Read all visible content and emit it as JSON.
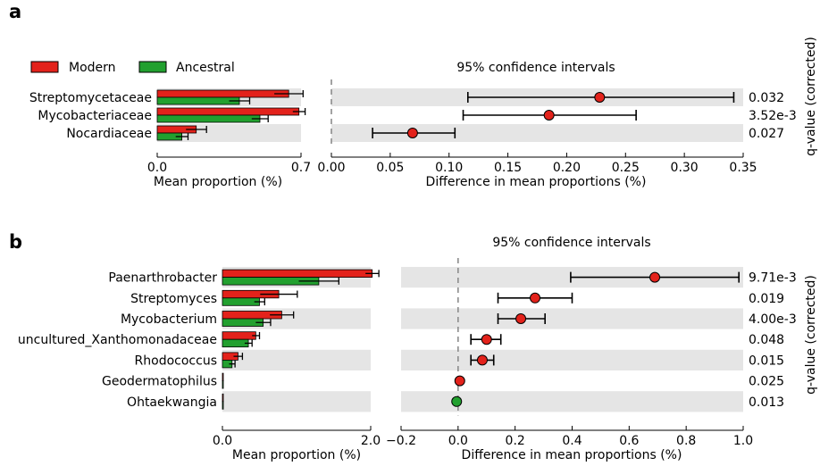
{
  "colors": {
    "modern": "#e3221b",
    "ancestral": "#22a02f",
    "band": "#e5e5e5",
    "dash": "#8c8c8c"
  },
  "legend": {
    "modern": "Modern",
    "ancestral": "Ancestral"
  },
  "chart_data": [
    {
      "panel": "a",
      "type": "bar",
      "ci_title": "95% confidence intervals",
      "xlabel_left": "Mean proportion (%)",
      "xlabel_right": "Difference in mean proportions (%)",
      "qvalue_label": "q-value (corrected)",
      "left_xlim": [
        0,
        0.7
      ],
      "left_ticks": [
        "0.0",
        "0.7"
      ],
      "right_xlim": [
        0,
        0.35
      ],
      "right_ticks": [
        "0.00",
        "0.05",
        "0.10",
        "0.15",
        "0.20",
        "0.25",
        "0.30",
        "0.35"
      ],
      "categories": [
        "Streptomycetaceae",
        "Mycobacteriaceae",
        "Nocardiaceae"
      ],
      "series": [
        {
          "name": "Modern",
          "values": [
            0.64,
            0.69,
            0.19
          ],
          "err": [
            0.07,
            0.03,
            0.05
          ]
        },
        {
          "name": "Ancestral",
          "values": [
            0.4,
            0.5,
            0.12
          ],
          "err": [
            0.05,
            0.04,
            0.03
          ]
        }
      ],
      "difference": [
        0.228,
        0.185,
        0.069
      ],
      "ci_low": [
        0.116,
        0.112,
        0.035
      ],
      "ci_high": [
        0.342,
        0.259,
        0.105
      ],
      "qvalues": [
        "0.032",
        "3.52e-3",
        "0.027"
      ]
    },
    {
      "panel": "b",
      "type": "bar",
      "ci_title": "95% confidence intervals",
      "xlabel_left": "Mean proportion (%)",
      "xlabel_right": "Difference in mean proportions (%)",
      "qvalue_label": "q-value (corrected)",
      "left_xlim": [
        0,
        2.0
      ],
      "left_ticks": [
        "0.0",
        "2.0"
      ],
      "right_xlim": [
        -0.2,
        1.0
      ],
      "right_ticks": [
        "−0.2",
        "0.0",
        "0.2",
        "0.4",
        "0.6",
        "0.8",
        "1.0"
      ],
      "categories": [
        "Paenarthrobacter",
        "Streptomyces",
        "Mycobacterium",
        "uncultured_Xanthomonadaceae",
        "Rhodococcus",
        "Geodermatophilus",
        "Ohtaekwangia"
      ],
      "series": [
        {
          "name": "Modern",
          "values": [
            2.02,
            0.76,
            0.8,
            0.45,
            0.21,
            0.012,
            0.006
          ],
          "err": [
            0.09,
            0.25,
            0.16,
            0.05,
            0.06,
            0.004,
            0.003
          ]
        },
        {
          "name": "Ancestral",
          "values": [
            1.3,
            0.5,
            0.55,
            0.35,
            0.13,
            0.005,
            0.012
          ],
          "err": [
            0.27,
            0.07,
            0.1,
            0.05,
            0.04,
            0.002,
            0.004
          ]
        }
      ],
      "difference": [
        0.69,
        0.27,
        0.22,
        0.1,
        0.085,
        0.006,
        -0.005
      ],
      "ci_low": [
        0.395,
        0.14,
        0.14,
        0.045,
        0.045,
        0.006,
        -0.005
      ],
      "ci_high": [
        0.985,
        0.4,
        0.305,
        0.15,
        0.125,
        0.006,
        -0.005
      ],
      "qvalues": [
        "9.71e-3",
        "0.019",
        "4.00e-3",
        "0.048",
        "0.015",
        "0.025",
        "0.013"
      ]
    }
  ]
}
